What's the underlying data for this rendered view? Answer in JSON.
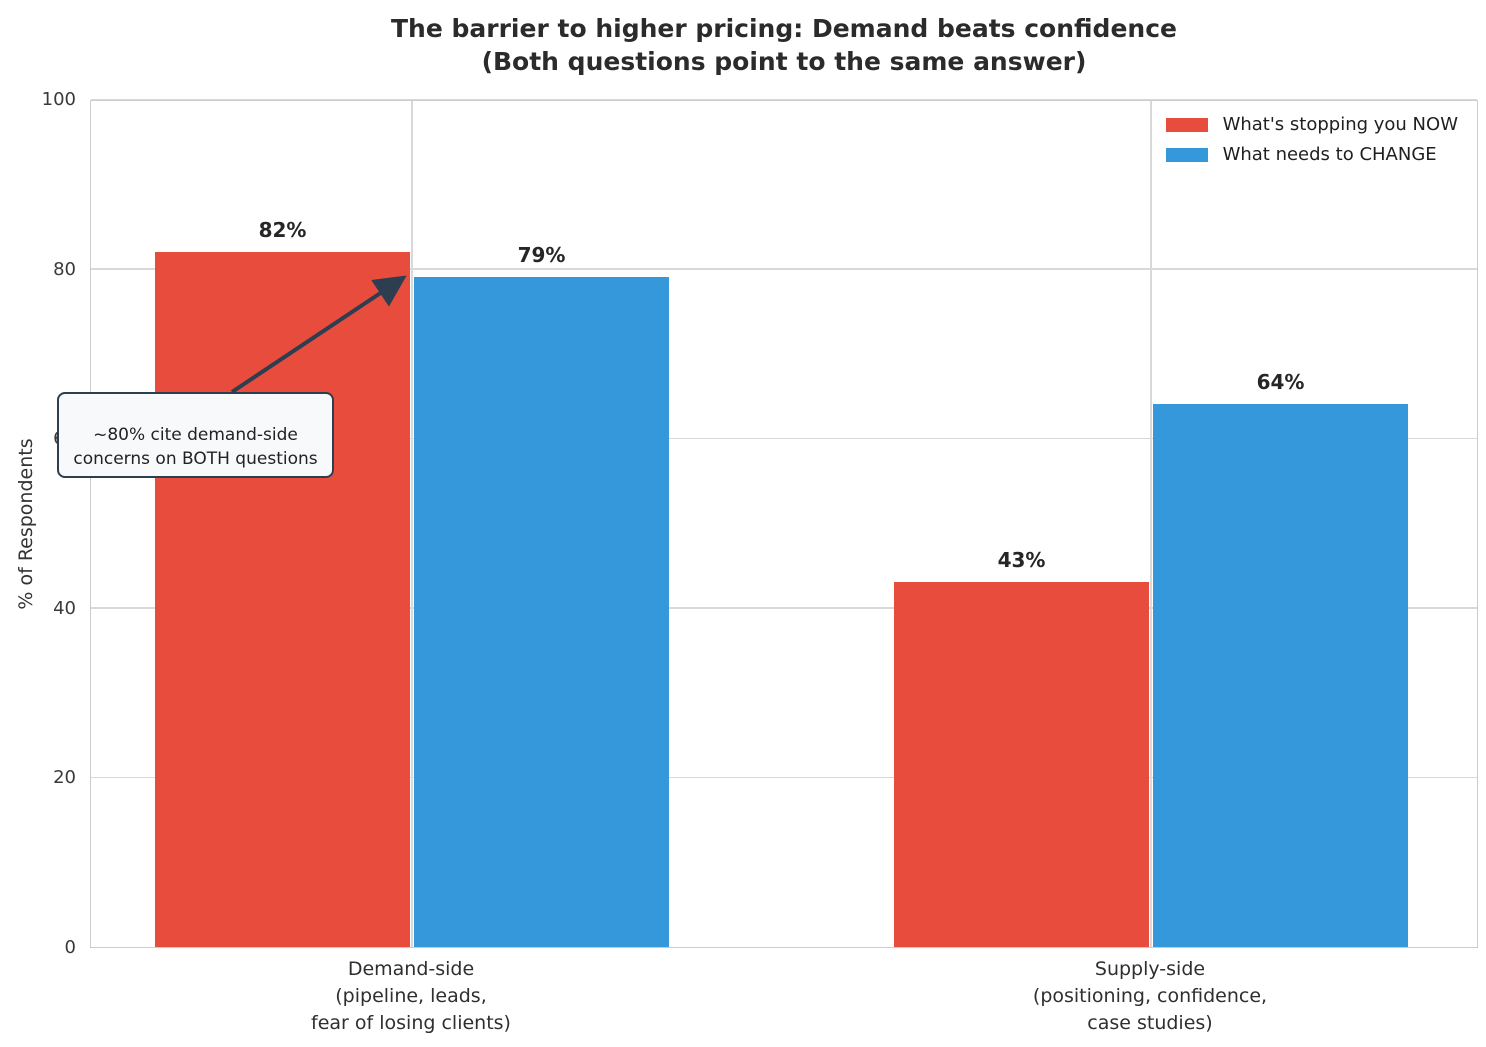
{
  "chart_data": {
    "type": "bar",
    "title": "The barrier to higher pricing: Demand beats confidence",
    "subtitle": "(Both questions point to the same answer)",
    "ylabel": "% of Respondents",
    "ylim": [
      0,
      100
    ],
    "yticks": [
      0,
      20,
      40,
      60,
      80,
      100
    ],
    "grid": true,
    "legend_position": "upper right",
    "categories": [
      "Demand-side\n(pipeline, leads,\nfear of losing clients)",
      "Supply-side\n(positioning, confidence,\ncase studies)"
    ],
    "series": [
      {
        "name": "What's stopping you NOW",
        "color": "#e74c3c",
        "values": [
          82,
          43
        ],
        "value_labels": [
          "82%",
          "43%"
        ]
      },
      {
        "name": "What needs to CHANGE",
        "color": "#3498db",
        "values": [
          79,
          64
        ],
        "value_labels": [
          "79%",
          "64%"
        ]
      }
    ],
    "annotation": {
      "text": "~80% cite demand-side\nconcerns on BOTH questions",
      "border_color": "#2c3e50",
      "background": "#f8f9fa",
      "arrow_color": "#2c3e50"
    }
  }
}
